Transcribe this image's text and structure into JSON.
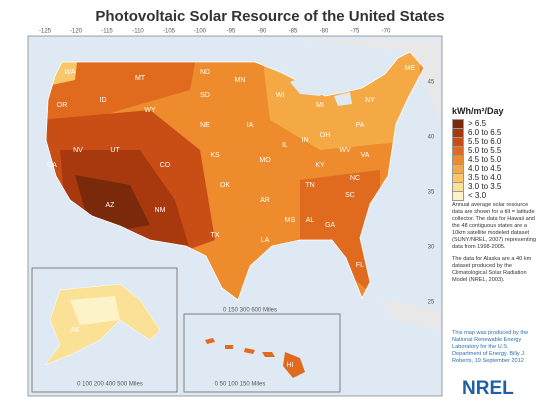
{
  "title": "Photovoltaic Solar Resource of the United States",
  "legend": {
    "title": "kWh/m²/Day",
    "items": [
      {
        "label": "> 6.5",
        "color": "#7a2a0a"
      },
      {
        "label": "6.0 to 6.5",
        "color": "#a8390f"
      },
      {
        "label": "5.5 to 6.0",
        "color": "#c94e16"
      },
      {
        "label": "5.0 to 5.5",
        "color": "#e06a1e"
      },
      {
        "label": "4.5 to 5.0",
        "color": "#ee8b2c"
      },
      {
        "label": "4.0 to 4.5",
        "color": "#f4a944"
      },
      {
        "label": "3.5 to 4.0",
        "color": "#f8c76a"
      },
      {
        "label": "3.0 to 3.5",
        "color": "#fbe196"
      },
      {
        "label": "< 3.0",
        "color": "#fdf3c8"
      }
    ]
  },
  "notes": [
    "Annual average solar resource data are shown for a tilt = latitude collector. The data for Hawaii and the 48 contiguous states are a 10km satellite modeled dataset (SUNY/NREL, 2007) representing data from 1998-2005.",
    "The data for Alaska are a 40 km dataset produced by the Climatological Solar Radiation Model (NREL, 2003)."
  ],
  "credit": "This map was produced by the National Renewable Energy Laboratory for the U.S. Department of Energy. Billy J. Roberts, 19 September 2012",
  "logo": "NREL",
  "longitudes": [
    -125,
    -120,
    -115,
    -110,
    -105,
    -100,
    -95,
    -90,
    -85,
    -80,
    -75,
    -70
  ],
  "latitudes": [
    45,
    40,
    35,
    30,
    25
  ],
  "states": [
    "WA",
    "OR",
    "CA",
    "NV",
    "ID",
    "MT",
    "WY",
    "UT",
    "AZ",
    "CO",
    "NM",
    "ND",
    "SD",
    "NE",
    "KS",
    "OK",
    "TX",
    "MN",
    "IA",
    "MO",
    "AR",
    "LA",
    "WI",
    "IL",
    "MS",
    "MI",
    "IN",
    "OH",
    "KY",
    "TN",
    "AL",
    "GA",
    "FL",
    "SC",
    "NC",
    "VA",
    "WV",
    "PA",
    "NY",
    "ME",
    "AK",
    "HI"
  ],
  "scale": "0 150 300 600 Miles",
  "hawaii_scale": "0 50 100 150 Miles",
  "alaska_scale": "0 100 200 400 500 Miles"
}
